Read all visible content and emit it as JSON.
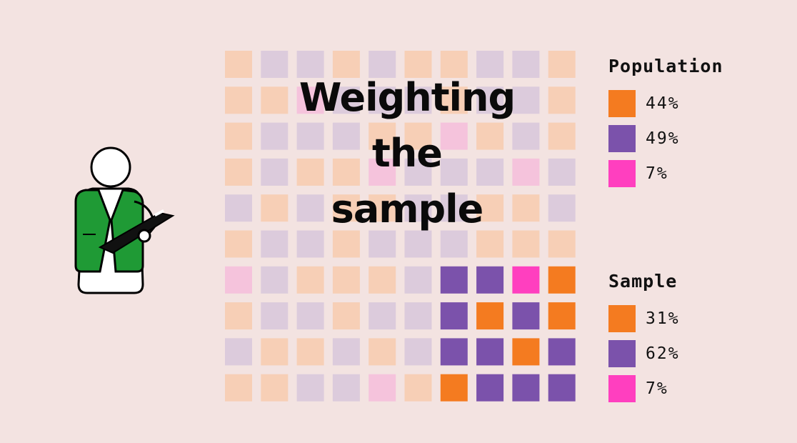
{
  "title": {
    "line1": "Weighting",
    "line2": "the",
    "line3": "sample"
  },
  "colors": {
    "orange": "#f47b20",
    "purple": "#7b52ab",
    "pink": "#ff3fbf",
    "orange_faded": "#f7cfb6",
    "purple_faded": "#dccbdc",
    "pink_faded": "#f5c3dc",
    "background": "#f3e3e1",
    "vest": "#1f9a35"
  },
  "population": {
    "heading": "Population",
    "items": [
      {
        "color": "orange",
        "pct": "44%"
      },
      {
        "color": "purple",
        "pct": "49%"
      },
      {
        "color": "pink",
        "pct": "7%"
      }
    ]
  },
  "sample": {
    "heading": "Sample",
    "items": [
      {
        "color": "orange",
        "pct": "31%"
      },
      {
        "color": "purple",
        "pct": "62%"
      },
      {
        "color": "pink",
        "pct": "7%"
      }
    ]
  },
  "grid": {
    "rows": [
      [
        "O",
        "P",
        "P",
        "O",
        "P",
        "O",
        "O",
        "P",
        "P",
        "O"
      ],
      [
        "O",
        "O",
        "K",
        "P",
        "P",
        "P",
        "O",
        "P",
        "P",
        "O"
      ],
      [
        "O",
        "P",
        "P",
        "P",
        "O",
        "O",
        "K",
        "O",
        "P",
        "O"
      ],
      [
        "O",
        "P",
        "O",
        "O",
        "K",
        "P",
        "P",
        "P",
        "K",
        "P"
      ],
      [
        "P",
        "O",
        "P",
        "O",
        "O",
        "P",
        "P",
        "O",
        "O",
        "P"
      ],
      [
        "O",
        "P",
        "P",
        "O",
        "P",
        "P",
        "P",
        "O",
        "O",
        "O"
      ],
      [
        "K",
        "P",
        "O",
        "O",
        "O",
        "P",
        "P",
        "P",
        "K",
        "O"
      ],
      [
        "O",
        "P",
        "P",
        "O",
        "P",
        "P",
        "P",
        "O",
        "P",
        "O"
      ],
      [
        "P",
        "O",
        "O",
        "P",
        "O",
        "P",
        "P",
        "P",
        "O",
        "P"
      ],
      [
        "O",
        "O",
        "P",
        "P",
        "K",
        "O",
        "O",
        "P",
        "P",
        "P"
      ]
    ],
    "highlighted": [
      [],
      [],
      [],
      [],
      [],
      [],
      [
        6,
        7,
        8,
        9
      ],
      [
        6,
        7,
        8,
        9
      ],
      [
        6,
        7,
        8,
        9
      ],
      [
        6,
        7,
        8,
        9
      ]
    ]
  },
  "icons": {
    "person": "surveyor-with-clipboard-icon"
  }
}
